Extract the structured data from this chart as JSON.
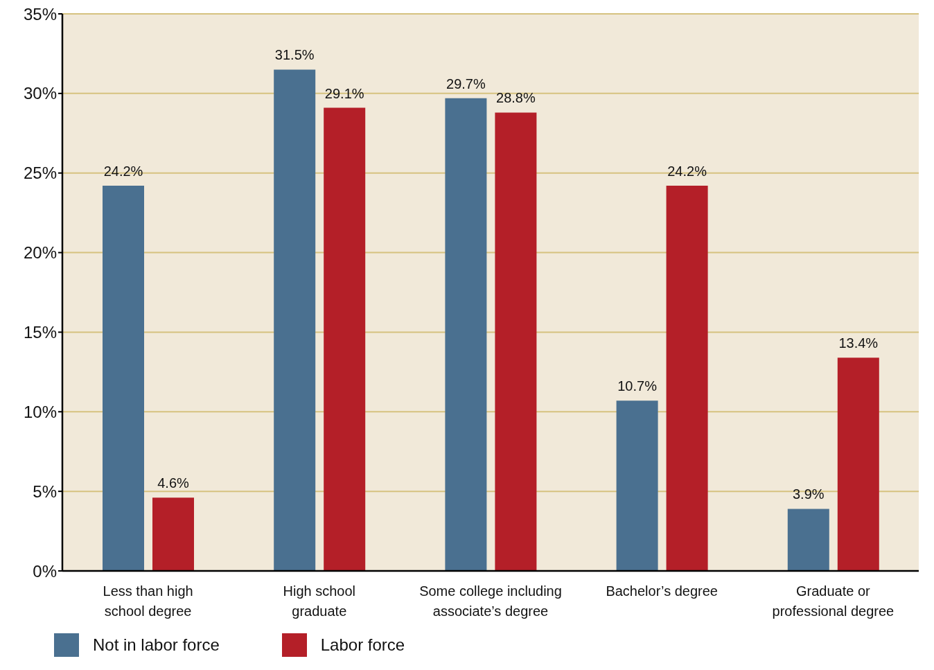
{
  "chart_data": {
    "type": "bar",
    "categories": [
      "Less than high\nschool degree",
      "High school\ngraduate",
      "Some college including\nassociate’s degree",
      "Bachelor’s degree",
      "Graduate or\nprofessional degree"
    ],
    "series": [
      {
        "name": "Not in labor force",
        "color": "#4a7090",
        "values": [
          24.2,
          31.5,
          29.7,
          10.7,
          3.9
        ],
        "value_labels": [
          "24.2%",
          "31.5%",
          "29.7%",
          "10.7%",
          "3.9%"
        ]
      },
      {
        "name": "Labor force",
        "color": "#b41f28",
        "values": [
          4.6,
          29.1,
          28.8,
          24.2,
          13.4
        ],
        "value_labels": [
          "4.6%",
          "29.1%",
          "28.8%",
          "24.2%",
          "13.4%"
        ]
      }
    ],
    "ylim": [
      0,
      35
    ],
    "yticks": [
      {
        "value": 0,
        "label": "0%"
      },
      {
        "value": 5,
        "label": "5%"
      },
      {
        "value": 10,
        "label": "10%"
      },
      {
        "value": 15,
        "label": "15%"
      },
      {
        "value": 20,
        "label": "20%"
      },
      {
        "value": 25,
        "label": "25%"
      },
      {
        "value": 30,
        "label": "30%"
      },
      {
        "value": 35,
        "label": "35%"
      }
    ],
    "grid": "y",
    "legend": "bottom left"
  }
}
